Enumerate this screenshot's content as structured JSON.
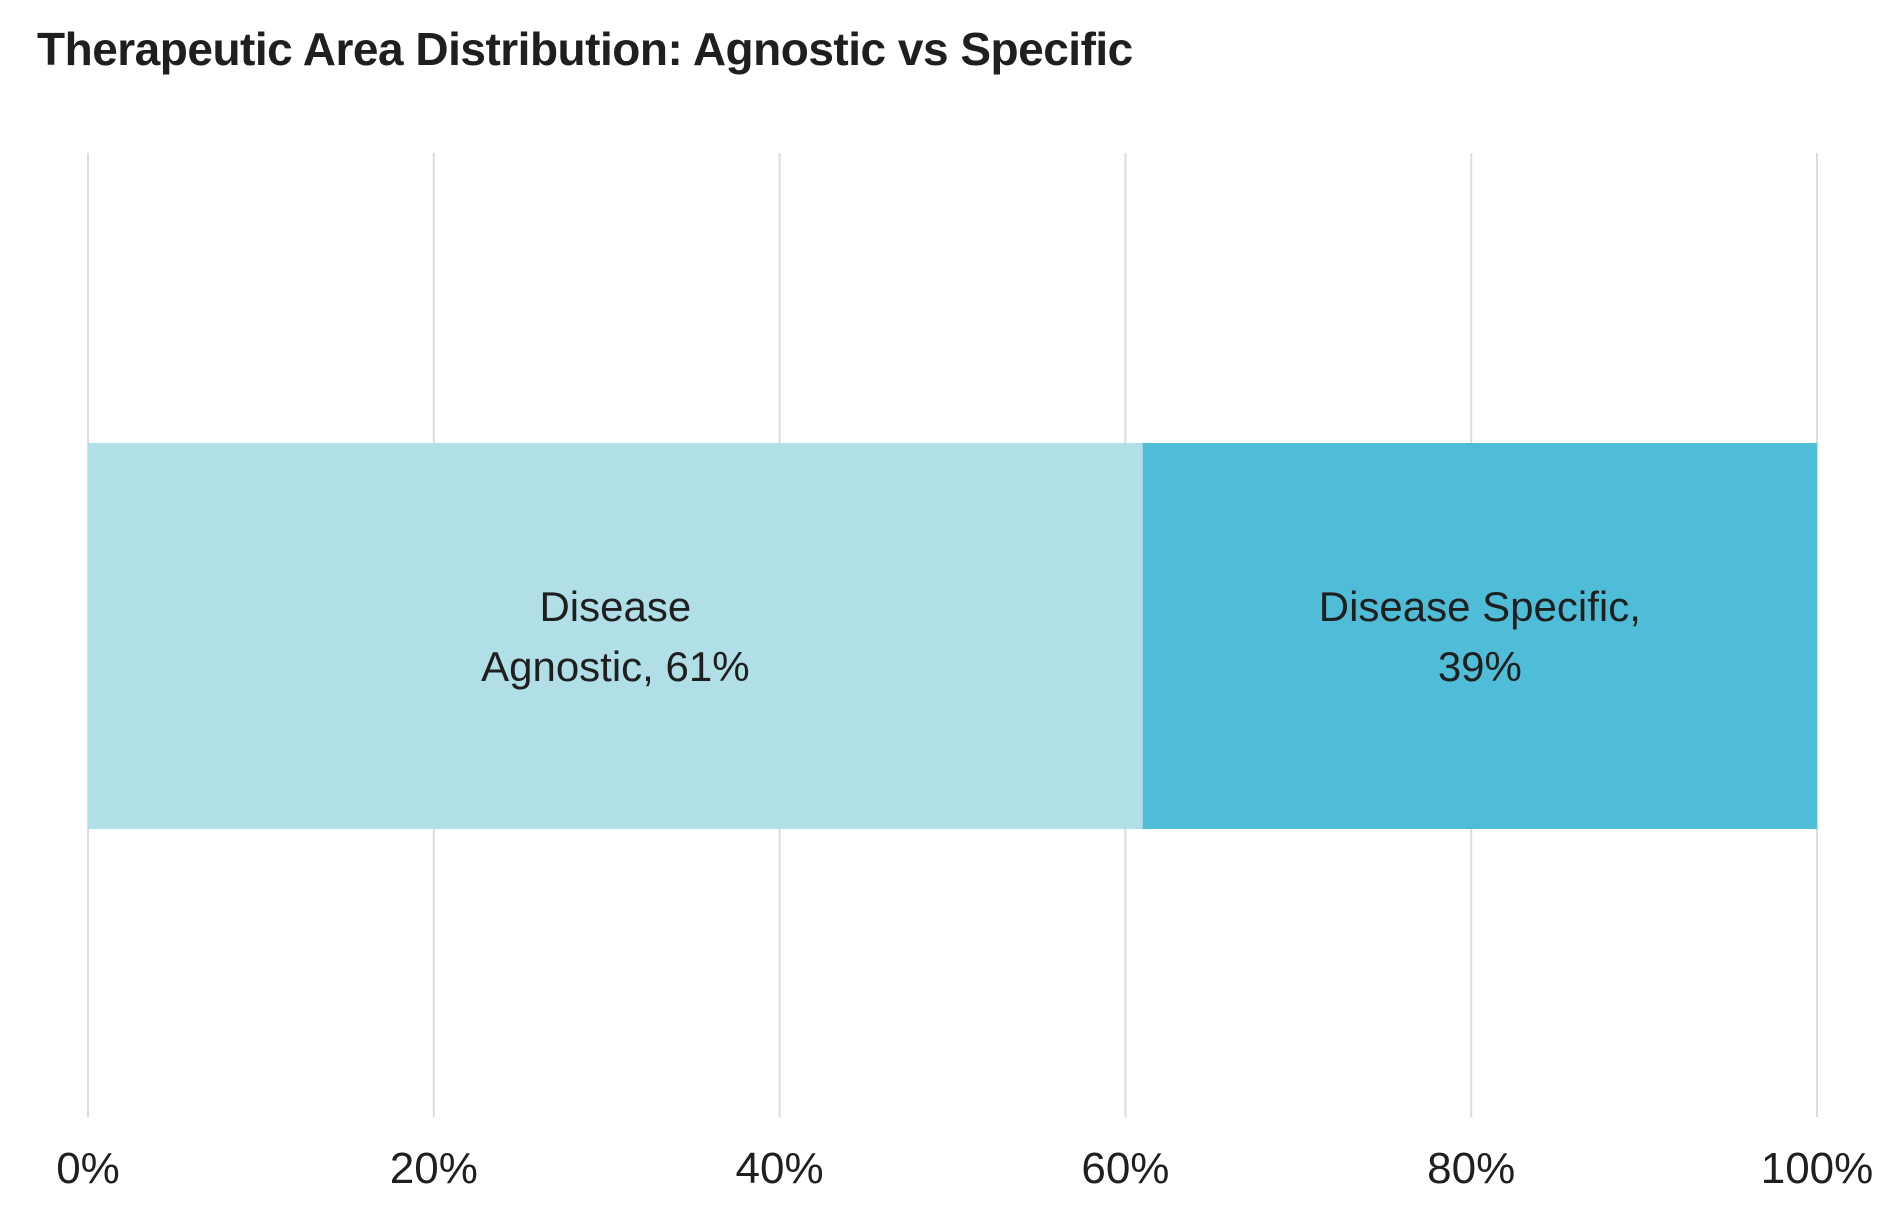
{
  "chart_data": {
    "type": "bar",
    "orientation": "horizontal",
    "stacked": true,
    "title": "Therapeutic Area Distribution: Agnostic vs Specific",
    "xlabel": "",
    "ylabel": "",
    "xlim": [
      0,
      100
    ],
    "x_ticks": [
      0,
      20,
      40,
      60,
      80,
      100
    ],
    "x_tick_labels": [
      "0%",
      "20%",
      "40%",
      "60%",
      "80%",
      "100%"
    ],
    "grid": "vertical",
    "segments": [
      {
        "label_lines": [
          "Disease",
          "Agnostic, 61%"
        ],
        "value": 61,
        "color": "#b1dfe7"
      },
      {
        "label_lines": [
          "Disease Specific,",
          "39%"
        ],
        "value": 39,
        "color": "#50bdd8"
      }
    ],
    "colors": {
      "grid": "#dcdcdc",
      "text": "#1f1f1f"
    }
  }
}
